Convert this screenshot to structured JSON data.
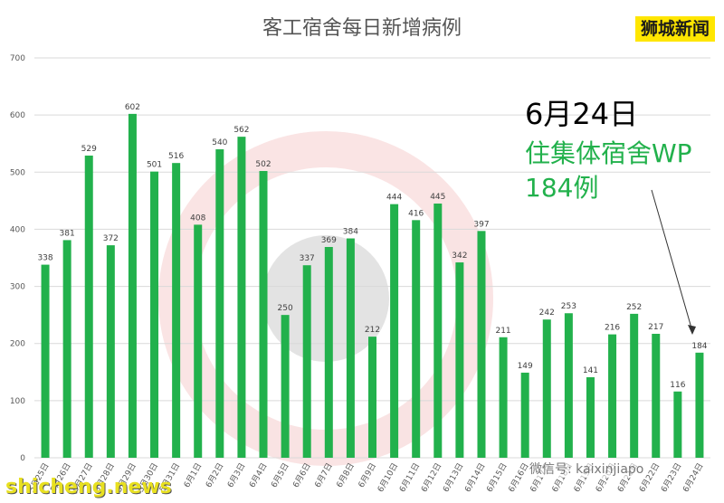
{
  "brand": "狮城新闻",
  "watermarks": {
    "bottom_left": "shicheng.news",
    "wechat": "微信号: kaixinjiapo"
  },
  "annotation": {
    "date": "6月24日",
    "line2": "住集体宿舍WP",
    "line3": "184例"
  },
  "colors": {
    "bar": "#22b14c",
    "annotation_green": "#22b14c",
    "brand_bg": "#ffe600"
  },
  "chart_data": {
    "type": "bar",
    "title": "客工宿舍每日新增病例",
    "categories": [
      "5月25日",
      "5月26日",
      "5月27日",
      "5月28日",
      "5月29日",
      "5月30日",
      "5月31日",
      "6月1日",
      "6月2日",
      "6月3日",
      "6月4日",
      "6月5日",
      "6月6日",
      "6月7日",
      "6月8日",
      "6月9日",
      "6月10日",
      "6月11日",
      "6月12日",
      "6月13日",
      "6月14日",
      "6月15日",
      "6月16日",
      "6月17日",
      "6月18日",
      "6月19日",
      "6月20日",
      "6月21日",
      "6月22日",
      "6月23日",
      "6月24日"
    ],
    "values": [
      338,
      381,
      529,
      372,
      602,
      501,
      516,
      408,
      540,
      562,
      502,
      250,
      337,
      369,
      384,
      212,
      444,
      416,
      445,
      342,
      397,
      211,
      149,
      242,
      253,
      141,
      216,
      252,
      217,
      116,
      184
    ],
    "yticks": [
      0,
      100,
      200,
      300,
      400,
      500,
      600,
      700
    ],
    "ylim": [
      0,
      700
    ],
    "grid": true,
    "legend": "none"
  }
}
